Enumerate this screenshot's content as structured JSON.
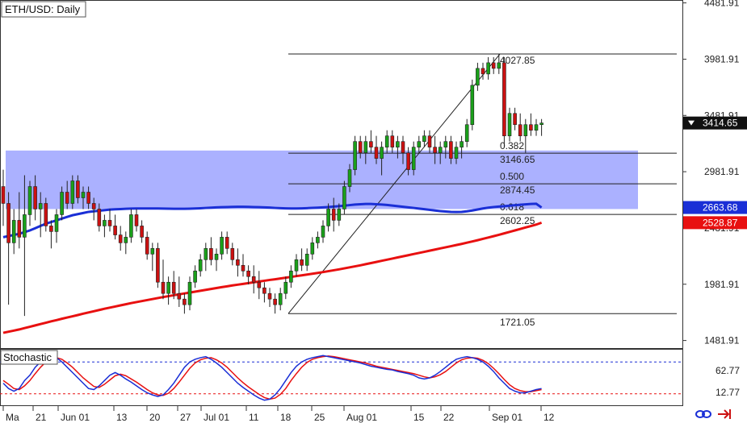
{
  "chart_data": {
    "type": "candlestick",
    "title": "ETH/USD: Daily",
    "x_tick_labels": [
      "Ma",
      "21",
      "Jun 01",
      "13",
      "20",
      "27",
      "Jul 01",
      "11",
      "18",
      "25",
      "Aug 01",
      "15",
      "22",
      "Sep 01",
      "12"
    ],
    "y_tick_labels": [
      "4481.91",
      "3981.91",
      "3481.91",
      "2981.91",
      "2481.91",
      "1981.91",
      "1481.91"
    ],
    "ylim": [
      1420,
      4510
    ],
    "current_price": "3414.65",
    "ma_labels": [
      "2663.68",
      "2528.87"
    ],
    "colors": {
      "bull": "#1aa01a",
      "bear": "#cc1111",
      "ma_blue": "#1a2fd6",
      "ma_red": "#e81010",
      "zone": "#8f97ff",
      "stoch_k": "#1a2fd6",
      "stoch_d": "#e81010",
      "level_line": "#1a2fd6",
      "level_line_low": "#e81010",
      "accent": "#cc1111"
    },
    "swing": {
      "high": "4027.85",
      "low": "1721.05",
      "high_value": 4027.85,
      "low_value": 1721.05
    },
    "fib_levels": [
      {
        "ratio": "0.382",
        "price": "3146.65",
        "value": 3146.65
      },
      {
        "ratio": "0.500",
        "price": "2874.45",
        "value": 2874.45
      },
      {
        "ratio": "0.618",
        "price": "2602.25",
        "value": 2602.25
      }
    ],
    "zone": {
      "top": 3170,
      "bottom": 2650
    },
    "candles": [
      [
        2850,
        3000,
        2500,
        2700
      ],
      [
        2700,
        2800,
        1800,
        2350
      ],
      [
        2350,
        2650,
        2250,
        2550
      ],
      [
        2550,
        2800,
        2300,
        2400
      ],
      [
        2400,
        2950,
        1700,
        2600
      ],
      [
        2600,
        2900,
        2500,
        2850
      ],
      [
        2850,
        2950,
        2550,
        2650
      ],
      [
        2650,
        2800,
        2400,
        2700
      ],
      [
        2700,
        2750,
        2450,
        2500
      ],
      [
        2500,
        2550,
        2300,
        2450
      ],
      [
        2450,
        2650,
        2350,
        2600
      ],
      [
        2600,
        2850,
        2550,
        2800
      ],
      [
        2800,
        2900,
        2650,
        2700
      ],
      [
        2700,
        2950,
        2650,
        2900
      ],
      [
        2900,
        2950,
        2700,
        2750
      ],
      [
        2750,
        2850,
        2650,
        2800
      ],
      [
        2800,
        2850,
        2650,
        2700
      ],
      [
        2700,
        2750,
        2550,
        2650
      ],
      [
        2650,
        2700,
        2450,
        2500
      ],
      [
        2500,
        2600,
        2400,
        2550
      ],
      [
        2550,
        2650,
        2450,
        2500
      ],
      [
        2500,
        2600,
        2380,
        2420
      ],
      [
        2420,
        2500,
        2280,
        2350
      ],
      [
        2350,
        2450,
        2250,
        2400
      ],
      [
        2400,
        2650,
        2350,
        2600
      ],
      [
        2600,
        2650,
        2450,
        2500
      ],
      [
        2500,
        2550,
        2350,
        2400
      ],
      [
        2400,
        2450,
        2200,
        2250
      ],
      [
        2250,
        2350,
        2100,
        2300
      ],
      [
        2300,
        2350,
        1950,
        2000
      ],
      [
        2000,
        2200,
        1850,
        1900
      ],
      [
        1900,
        2050,
        1800,
        2000
      ],
      [
        2000,
        2100,
        1850,
        1900
      ],
      [
        1900,
        2050,
        1780,
        1850
      ],
      [
        1850,
        1900,
        1720,
        1800
      ],
      [
        1800,
        2050,
        1750,
        2000
      ],
      [
        2000,
        2150,
        1950,
        2100
      ],
      [
        2100,
        2250,
        2050,
        2200
      ],
      [
        2200,
        2350,
        2100,
        2300
      ],
      [
        2300,
        2400,
        2150,
        2200
      ],
      [
        2200,
        2300,
        2100,
        2250
      ],
      [
        2250,
        2450,
        2200,
        2400
      ],
      [
        2400,
        2450,
        2250,
        2300
      ],
      [
        2300,
        2350,
        2150,
        2200
      ],
      [
        2200,
        2300,
        2050,
        2150
      ],
      [
        2150,
        2250,
        2050,
        2100
      ],
      [
        2100,
        2150,
        1980,
        2050
      ],
      [
        2050,
        2150,
        1900,
        2000
      ],
      [
        2000,
        2100,
        1850,
        1950
      ],
      [
        1950,
        2000,
        1820,
        1900
      ],
      [
        1900,
        1950,
        1780,
        1850
      ],
      [
        1850,
        1900,
        1721,
        1800
      ],
      [
        1800,
        1950,
        1750,
        1900
      ],
      [
        1900,
        2050,
        1850,
        2000
      ],
      [
        2000,
        2150,
        1950,
        2100
      ],
      [
        2100,
        2250,
        2050,
        2200
      ],
      [
        2200,
        2300,
        2100,
        2150
      ],
      [
        2150,
        2300,
        2100,
        2250
      ],
      [
        2250,
        2400,
        2200,
        2350
      ],
      [
        2350,
        2450,
        2300,
        2400
      ],
      [
        2400,
        2550,
        2350,
        2500
      ],
      [
        2500,
        2700,
        2450,
        2650
      ],
      [
        2650,
        2750,
        2450,
        2550
      ],
      [
        2550,
        2700,
        2500,
        2650
      ],
      [
        2650,
        2900,
        2600,
        2850
      ],
      [
        2850,
        3050,
        2800,
        3000
      ],
      [
        3000,
        3300,
        2950,
        3250
      ],
      [
        3250,
        3300,
        3100,
        3150
      ],
      [
        3150,
        3300,
        3050,
        3250
      ],
      [
        3250,
        3350,
        3150,
        3200
      ],
      [
        3200,
        3300,
        3050,
        3100
      ],
      [
        3100,
        3250,
        2950,
        3200
      ],
      [
        3200,
        3350,
        3150,
        3300
      ],
      [
        3300,
        3350,
        3150,
        3200
      ],
      [
        3200,
        3300,
        3100,
        3250
      ],
      [
        3250,
        3300,
        3050,
        3150
      ],
      [
        3150,
        3200,
        2950,
        3000
      ],
      [
        3000,
        3250,
        2950,
        3200
      ],
      [
        3200,
        3300,
        3150,
        3250
      ],
      [
        3250,
        3350,
        3200,
        3300
      ],
      [
        3300,
        3350,
        3150,
        3200
      ],
      [
        3200,
        3300,
        3050,
        3150
      ],
      [
        3150,
        3250,
        3050,
        3200
      ],
      [
        3200,
        3300,
        3100,
        3250
      ],
      [
        3250,
        3300,
        3050,
        3100
      ],
      [
        3100,
        3250,
        3050,
        3200
      ],
      [
        3200,
        3300,
        3100,
        3250
      ],
      [
        3250,
        3450,
        3200,
        3400
      ],
      [
        3400,
        3800,
        3350,
        3750
      ],
      [
        3750,
        3950,
        3700,
        3900
      ],
      [
        3900,
        3950,
        3800,
        3850
      ],
      [
        3850,
        4000,
        3800,
        3950
      ],
      [
        3950,
        4000,
        3850,
        3900
      ],
      [
        3900,
        4027.85,
        3850,
        3950
      ],
      [
        3950,
        4000,
        3200,
        3300
      ],
      [
        3300,
        3550,
        3250,
        3500
      ],
      [
        3500,
        3550,
        3350,
        3400
      ],
      [
        3400,
        3500,
        3250,
        3300
      ],
      [
        3300,
        3450,
        3150,
        3400
      ],
      [
        3400,
        3500,
        3300,
        3350
      ],
      [
        3350,
        3450,
        3300,
        3400
      ],
      [
        3400,
        3450,
        3300,
        3414.65
      ]
    ],
    "ma_blue_values": [
      2400,
      2410,
      2420,
      2430,
      2445,
      2460,
      2480,
      2500,
      2520,
      2535,
      2550,
      2565,
      2580,
      2595,
      2605,
      2615,
      2625,
      2630,
      2635,
      2640,
      2645,
      2648,
      2650,
      2652,
      2654,
      2655,
      2655,
      2655,
      2655,
      2655,
      2654,
      2653,
      2652,
      2652,
      2652,
      2653,
      2655,
      2657,
      2660,
      2662,
      2665,
      2667,
      2668,
      2669,
      2670,
      2670,
      2669,
      2668,
      2667,
      2665,
      2663,
      2660,
      2658,
      2656,
      2655,
      2655,
      2656,
      2658,
      2660,
      2662,
      2665,
      2668,
      2672,
      2676,
      2680,
      2685,
      2690,
      2693,
      2695,
      2695,
      2693,
      2690,
      2686,
      2681,
      2676,
      2670,
      2665,
      2660,
      2654,
      2649,
      2643,
      2637,
      2632,
      2628,
      2625,
      2624,
      2625,
      2630,
      2637,
      2646,
      2655,
      2662,
      2668,
      2672,
      2676,
      2680,
      2684,
      2688,
      2692,
      2695,
      2697,
      2663.68
    ],
    "ma_red_values": [
      1550,
      1560,
      1570,
      1580,
      1592,
      1604,
      1616,
      1628,
      1640,
      1652,
      1663,
      1675,
      1686,
      1697,
      1708,
      1720,
      1731,
      1742,
      1753,
      1764,
      1774,
      1784,
      1794,
      1804,
      1814,
      1823,
      1832,
      1841,
      1850,
      1859,
      1868,
      1876,
      1884,
      1892,
      1900,
      1908,
      1916,
      1924,
      1932,
      1940,
      1948,
      1956,
      1963,
      1971,
      1978,
      1985,
      1992,
      1999,
      2006,
      2013,
      2020,
      2026,
      2033,
      2040,
      2047,
      2054,
      2061,
      2068,
      2075,
      2082,
      2090,
      2098,
      2106,
      2114,
      2123,
      2132,
      2141,
      2150,
      2160,
      2170,
      2180,
      2190,
      2200,
      2210,
      2220,
      2230,
      2240,
      2250,
      2260,
      2270,
      2280,
      2290,
      2300,
      2310,
      2320,
      2330,
      2340,
      2351,
      2362,
      2373,
      2385,
      2397,
      2409,
      2421,
      2434,
      2447,
      2460,
      2473,
      2486,
      2499,
      2512,
      2528.87
    ],
    "stochastic": {
      "title": "Stochastic",
      "y_tick_labels": [
        "62.77",
        "12.77"
      ],
      "k": [
        40,
        30,
        25,
        30,
        45,
        55,
        70,
        80,
        88,
        90,
        88,
        80,
        70,
        60,
        50,
        40,
        30,
        28,
        35,
        45,
        55,
        60,
        55,
        48,
        42,
        35,
        28,
        22,
        18,
        15,
        18,
        28,
        40,
        55,
        70,
        80,
        85,
        88,
        90,
        85,
        78,
        70,
        60,
        50,
        40,
        32,
        25,
        18,
        12,
        8,
        10,
        18,
        30,
        45,
        60,
        72,
        80,
        85,
        88,
        90,
        92,
        90,
        88,
        86,
        84,
        82,
        80,
        78,
        75,
        72,
        70,
        68,
        66,
        65,
        62,
        60,
        58,
        55,
        50,
        48,
        50,
        55,
        62,
        70,
        78,
        85,
        88,
        90,
        88,
        85,
        80,
        72,
        62,
        50,
        40,
        30,
        25,
        22,
        22,
        25,
        28,
        30
      ],
      "d": [
        45,
        38,
        30,
        28,
        35,
        45,
        58,
        70,
        80,
        86,
        88,
        85,
        78,
        70,
        60,
        50,
        42,
        34,
        32,
        38,
        46,
        54,
        57,
        54,
        48,
        42,
        35,
        28,
        22,
        18,
        17,
        21,
        30,
        42,
        55,
        68,
        78,
        84,
        87,
        88,
        84,
        78,
        70,
        60,
        50,
        41,
        33,
        26,
        19,
        13,
        10,
        12,
        19,
        30,
        45,
        58,
        70,
        79,
        85,
        88,
        90,
        91,
        90,
        88,
        86,
        84,
        82,
        80,
        78,
        75,
        72,
        70,
        68,
        66,
        64,
        62,
        60,
        58,
        55,
        52,
        50,
        52,
        56,
        62,
        70,
        78,
        84,
        87,
        88,
        87,
        83,
        77,
        68,
        58,
        47,
        37,
        30,
        26,
        24,
        24,
        26,
        28
      ]
    }
  }
}
